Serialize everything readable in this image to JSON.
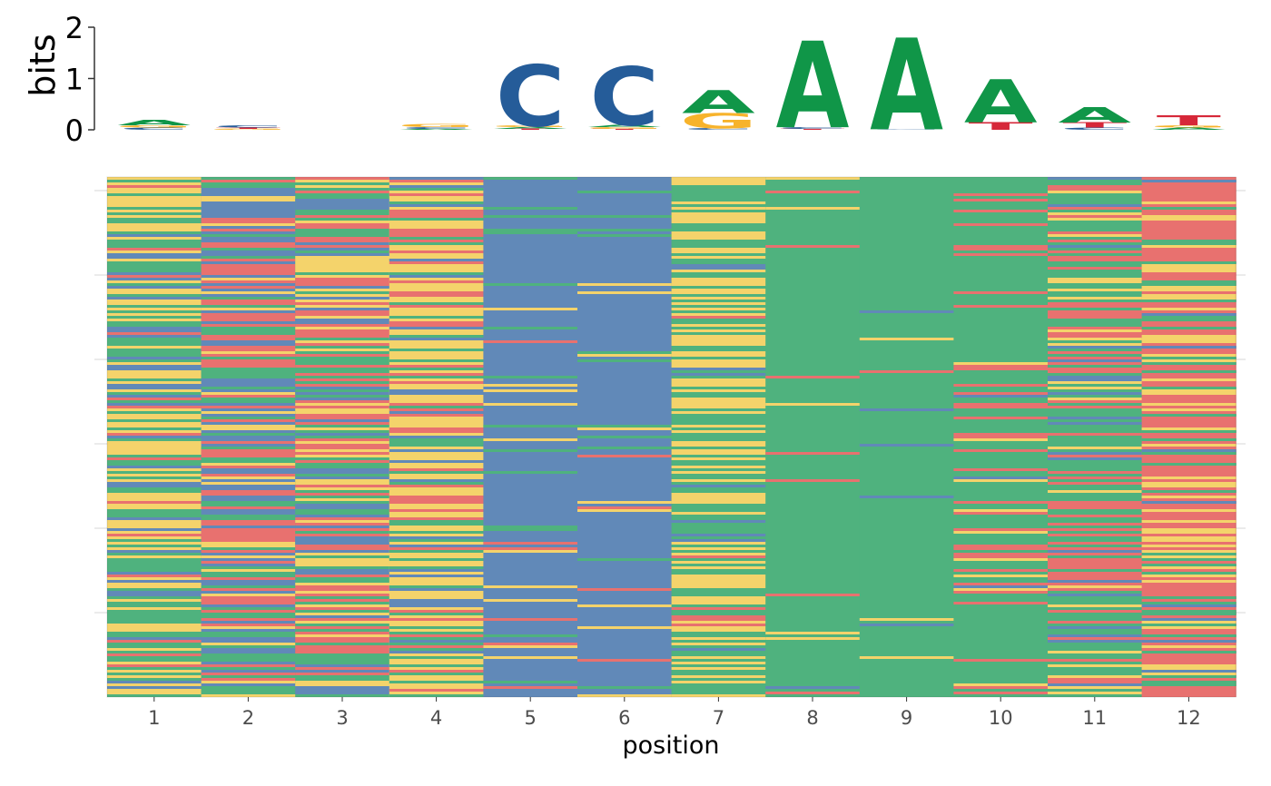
{
  "chart_data": {
    "type": "heatmap",
    "logo": {
      "ylabel": "bits",
      "ylim": [
        0,
        2
      ],
      "yticks": [
        "0",
        "1",
        "2"
      ],
      "stacks": [
        [
          {
            "base": "C",
            "bits": 0.04
          },
          {
            "base": "G",
            "bits": 0.05
          },
          {
            "base": "A",
            "bits": 0.1
          }
        ],
        [
          {
            "base": "G",
            "bits": 0.02
          },
          {
            "base": "T",
            "bits": 0.02
          },
          {
            "base": "C",
            "bits": 0.04
          }
        ],
        [],
        [
          {
            "base": "A",
            "bits": 0.02
          },
          {
            "base": "C",
            "bits": 0.03
          },
          {
            "base": "G",
            "bits": 0.06
          }
        ],
        [
          {
            "base": "T",
            "bits": 0.02
          },
          {
            "base": "A",
            "bits": 0.03
          },
          {
            "base": "G",
            "bits": 0.03
          },
          {
            "base": "C",
            "bits": 1.2
          }
        ],
        [
          {
            "base": "T",
            "bits": 0.02
          },
          {
            "base": "G",
            "bits": 0.03
          },
          {
            "base": "A",
            "bits": 0.04
          },
          {
            "base": "C",
            "bits": 1.15
          }
        ],
        [
          {
            "base": "C",
            "bits": 0.03
          },
          {
            "base": "G",
            "bits": 0.3
          },
          {
            "base": "A",
            "bits": 0.45
          }
        ],
        [
          {
            "base": "T",
            "bits": 0.02
          },
          {
            "base": "C",
            "bits": 0.03
          },
          {
            "base": "A",
            "bits": 1.7
          }
        ],
        [
          {
            "base": "C",
            "bits": 0.01
          },
          {
            "base": "A",
            "bits": 1.8
          }
        ],
        [
          {
            "base": "T",
            "bits": 0.15
          },
          {
            "base": "A",
            "bits": 0.85
          }
        ],
        [
          {
            "base": "C",
            "bits": 0.04
          },
          {
            "base": "T",
            "bits": 0.1
          },
          {
            "base": "A",
            "bits": 0.3
          }
        ],
        [
          {
            "base": "A",
            "bits": 0.04
          },
          {
            "base": "G",
            "bits": 0.05
          },
          {
            "base": "T",
            "bits": 0.2
          }
        ]
      ]
    },
    "heatmap": {
      "xlabel": "position",
      "categories": [
        "1",
        "2",
        "3",
        "4",
        "5",
        "6",
        "7",
        "8",
        "9",
        "10",
        "11",
        "12"
      ],
      "base_frequencies": [
        {
          "A": 0.4,
          "C": 0.15,
          "G": 0.35,
          "T": 0.1
        },
        {
          "A": 0.25,
          "C": 0.35,
          "G": 0.1,
          "T": 0.3
        },
        {
          "A": 0.3,
          "C": 0.15,
          "G": 0.25,
          "T": 0.3
        },
        {
          "A": 0.22,
          "C": 0.13,
          "G": 0.45,
          "T": 0.2
        },
        {
          "A": 0.05,
          "C": 0.87,
          "G": 0.04,
          "T": 0.04
        },
        {
          "A": 0.07,
          "C": 0.85,
          "G": 0.04,
          "T": 0.04
        },
        {
          "A": 0.45,
          "C": 0.05,
          "G": 0.45,
          "T": 0.05
        },
        {
          "A": 0.92,
          "C": 0.02,
          "G": 0.03,
          "T": 0.03
        },
        {
          "A": 0.96,
          "C": 0.01,
          "G": 0.02,
          "T": 0.01
        },
        {
          "A": 0.75,
          "C": 0.02,
          "G": 0.05,
          "T": 0.18
        },
        {
          "A": 0.5,
          "C": 0.1,
          "G": 0.1,
          "T": 0.3
        },
        {
          "A": 0.15,
          "C": 0.05,
          "G": 0.3,
          "T": 0.5
        }
      ]
    },
    "colors": {
      "A": "#109648",
      "C": "#255C99",
      "G": "#F7B32B",
      "T": "#D62839",
      "heat_A": "#4fb27e",
      "heat_C": "#6189b8",
      "heat_G": "#f4d36b",
      "heat_T": "#e8716f",
      "tick_text": "#4d4d4d",
      "grid": "#ebebeb"
    }
  }
}
